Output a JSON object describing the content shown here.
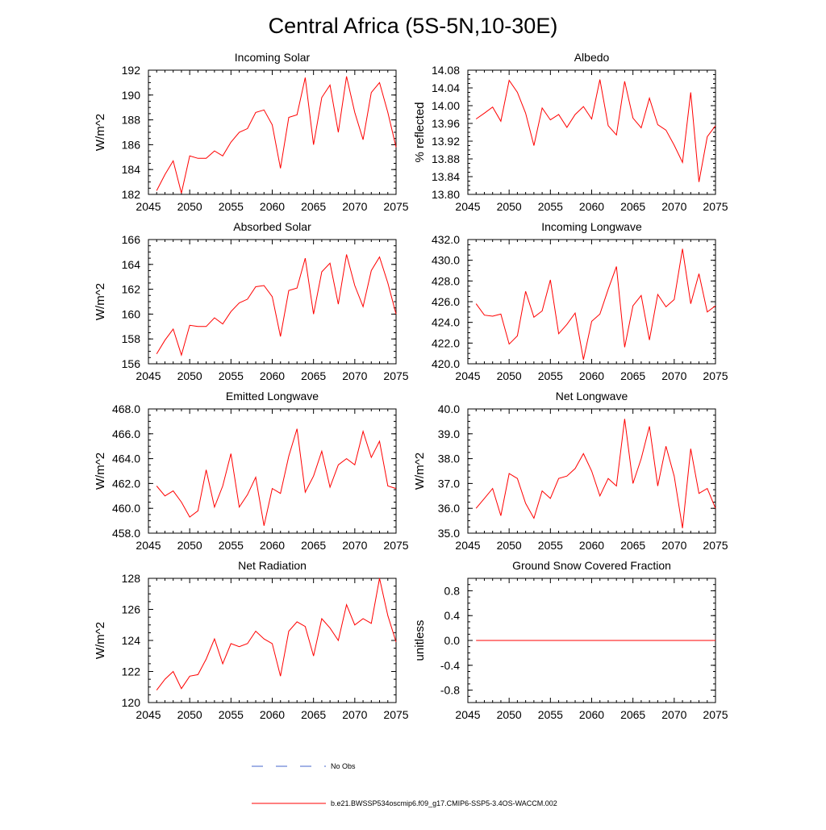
{
  "figure_title": "Central Africa (5S-5N,10-30E)",
  "legend": {
    "entries": [
      {
        "label": "No Obs",
        "color": "#4466cc",
        "style": "dashed"
      },
      {
        "label": "b.e21.BWSSP534oscmip6.f09_g17.CMIP6-SSP5-3.4OS-WACCM.002",
        "color": "#ff0000",
        "style": "solid"
      }
    ]
  },
  "chart_data": [
    {
      "type": "line",
      "title": "Incoming Solar",
      "ylabel": "W/m^2",
      "xlim": [
        2045,
        2075
      ],
      "xticks": [
        "2045",
        "2050",
        "2055",
        "2060",
        "2065",
        "2070",
        "2075"
      ],
      "ylim": [
        182,
        192
      ],
      "yticks": [
        "182",
        "184",
        "186",
        "188",
        "190",
        "192"
      ],
      "series": [
        {
          "name": "b.e21.BWSSP534oscmip6.f09_g17.CMIP6-SSP5-3.4OS-WACCM.002",
          "color": "#ff0000",
          "x": [
            2046,
            2047,
            2048,
            2049,
            2050,
            2051,
            2052,
            2053,
            2054,
            2055,
            2056,
            2057,
            2058,
            2059,
            2060,
            2061,
            2062,
            2063,
            2064,
            2065,
            2066,
            2067,
            2068,
            2069,
            2070,
            2071,
            2072,
            2073,
            2074,
            2075
          ],
          "values": [
            182.3,
            183.6,
            184.7,
            182.1,
            185.1,
            184.9,
            184.9,
            185.5,
            185.1,
            186.2,
            187.0,
            187.3,
            188.6,
            188.8,
            187.6,
            184.1,
            188.2,
            188.4,
            191.4,
            186.0,
            189.8,
            190.8,
            187.0,
            191.5,
            188.6,
            186.4,
            190.2,
            191.0,
            188.6,
            185.8
          ]
        }
      ]
    },
    {
      "type": "line",
      "title": "Albedo",
      "ylabel": "% reflected",
      "xlim": [
        2045,
        2075
      ],
      "xticks": [
        "2045",
        "2050",
        "2055",
        "2060",
        "2065",
        "2070",
        "2075"
      ],
      "ylim": [
        13.8,
        14.08
      ],
      "yticks": [
        "13.80",
        "13.84",
        "13.88",
        "13.92",
        "13.96",
        "14.00",
        "14.04",
        "14.08"
      ],
      "series": [
        {
          "name": "b.e21.BWSSP534oscmip6.f09_g17.CMIP6-SSP5-3.4OS-WACCM.002",
          "color": "#ff0000",
          "x": [
            2046,
            2047,
            2048,
            2049,
            2050,
            2051,
            2052,
            2053,
            2054,
            2055,
            2056,
            2057,
            2058,
            2059,
            2060,
            2061,
            2062,
            2063,
            2064,
            2065,
            2066,
            2067,
            2068,
            2069,
            2070,
            2071,
            2072,
            2073,
            2074,
            2075
          ],
          "values": [
            13.97,
            13.983,
            13.997,
            13.965,
            14.057,
            14.03,
            13.983,
            13.91,
            13.995,
            13.968,
            13.98,
            13.951,
            13.98,
            13.998,
            13.97,
            14.059,
            13.955,
            13.934,
            14.055,
            13.972,
            13.95,
            14.017,
            13.957,
            13.945,
            13.911,
            13.872,
            14.03,
            13.828,
            13.93,
            13.955
          ]
        }
      ]
    },
    {
      "type": "line",
      "title": "Absorbed Solar",
      "ylabel": "W/m^2",
      "xlim": [
        2045,
        2075
      ],
      "xticks": [
        "2045",
        "2050",
        "2055",
        "2060",
        "2065",
        "2070",
        "2075"
      ],
      "ylim": [
        156,
        166
      ],
      "yticks": [
        "156",
        "158",
        "160",
        "162",
        "164",
        "166"
      ],
      "series": [
        {
          "name": "b.e21.BWSSP534oscmip6.f09_g17.CMIP6-SSP5-3.4OS-WACCM.002",
          "color": "#ff0000",
          "x": [
            2046,
            2047,
            2048,
            2049,
            2050,
            2051,
            2052,
            2053,
            2054,
            2055,
            2056,
            2057,
            2058,
            2059,
            2060,
            2061,
            2062,
            2063,
            2064,
            2065,
            2066,
            2067,
            2068,
            2069,
            2070,
            2071,
            2072,
            2073,
            2074,
            2075
          ],
          "values": [
            156.8,
            157.9,
            158.8,
            156.7,
            159.1,
            159.0,
            159.0,
            159.7,
            159.2,
            160.2,
            160.9,
            161.2,
            162.2,
            162.3,
            161.4,
            158.2,
            161.9,
            162.1,
            164.5,
            160.0,
            163.4,
            164.1,
            160.8,
            164.8,
            162.3,
            160.6,
            163.5,
            164.6,
            162.5,
            160.0
          ]
        }
      ]
    },
    {
      "type": "line",
      "title": "Incoming Longwave",
      "ylabel": "",
      "xlim": [
        2045,
        2075
      ],
      "xticks": [
        "2045",
        "2050",
        "2055",
        "2060",
        "2065",
        "2070",
        "2075"
      ],
      "ylim": [
        420,
        432
      ],
      "yticks": [
        "420.0",
        "422.0",
        "424.0",
        "426.0",
        "428.0",
        "430.0",
        "432.0"
      ],
      "series": [
        {
          "name": "b.e21.BWSSP534oscmip6.f09_g17.CMIP6-SSP5-3.4OS-WACCM.002",
          "color": "#ff0000",
          "x": [
            2046,
            2047,
            2048,
            2049,
            2050,
            2051,
            2052,
            2053,
            2054,
            2055,
            2056,
            2057,
            2058,
            2059,
            2060,
            2061,
            2062,
            2063,
            2064,
            2065,
            2066,
            2067,
            2068,
            2069,
            2070,
            2071,
            2072,
            2073,
            2074,
            2075
          ],
          "values": [
            425.8,
            424.7,
            424.6,
            424.8,
            421.9,
            422.7,
            427.0,
            424.5,
            425.1,
            428.1,
            422.9,
            423.8,
            424.9,
            420.4,
            424.1,
            424.8,
            427.2,
            429.4,
            421.6,
            425.6,
            426.6,
            422.3,
            426.7,
            425.5,
            426.2,
            431.1,
            425.8,
            428.7,
            425.0,
            425.6
          ]
        }
      ]
    },
    {
      "type": "line",
      "title": "Emitted Longwave",
      "ylabel": "W/m^2",
      "xlim": [
        2045,
        2075
      ],
      "xticks": [
        "2045",
        "2050",
        "2055",
        "2060",
        "2065",
        "2070",
        "2075"
      ],
      "ylim": [
        458,
        468
      ],
      "yticks": [
        "458.0",
        "460.0",
        "462.0",
        "464.0",
        "466.0",
        "468.0"
      ],
      "series": [
        {
          "name": "b.e21.BWSSP534oscmip6.f09_g17.CMIP6-SSP5-3.4OS-WACCM.002",
          "color": "#ff0000",
          "x": [
            2046,
            2047,
            2048,
            2049,
            2050,
            2051,
            2052,
            2053,
            2054,
            2055,
            2056,
            2057,
            2058,
            2059,
            2060,
            2061,
            2062,
            2063,
            2064,
            2065,
            2066,
            2067,
            2068,
            2069,
            2070,
            2071,
            2072,
            2073,
            2074,
            2075
          ],
          "values": [
            461.8,
            461.0,
            461.4,
            460.5,
            459.3,
            459.8,
            463.1,
            460.1,
            461.8,
            464.4,
            460.1,
            461.1,
            462.5,
            458.6,
            461.6,
            461.2,
            464.2,
            466.4,
            461.3,
            462.6,
            464.6,
            461.7,
            463.5,
            464.0,
            463.5,
            466.2,
            464.1,
            465.4,
            461.8,
            461.6
          ]
        }
      ]
    },
    {
      "type": "line",
      "title": "Net Longwave",
      "ylabel": "W/m^2",
      "xlim": [
        2045,
        2075
      ],
      "xticks": [
        "2045",
        "2050",
        "2055",
        "2060",
        "2065",
        "2070",
        "2075"
      ],
      "ylim": [
        35,
        40
      ],
      "yticks": [
        "35.0",
        "36.0",
        "37.0",
        "38.0",
        "39.0",
        "40.0"
      ],
      "series": [
        {
          "name": "b.e21.BWSSP534oscmip6.f09_g17.CMIP6-SSP5-3.4OS-WACCM.002",
          "color": "#ff0000",
          "x": [
            2046,
            2047,
            2048,
            2049,
            2050,
            2051,
            2052,
            2053,
            2054,
            2055,
            2056,
            2057,
            2058,
            2059,
            2060,
            2061,
            2062,
            2063,
            2064,
            2065,
            2066,
            2067,
            2068,
            2069,
            2070,
            2071,
            2072,
            2073,
            2074,
            2075
          ],
          "values": [
            36.0,
            36.4,
            36.8,
            35.7,
            37.4,
            37.2,
            36.2,
            35.6,
            36.7,
            36.4,
            37.2,
            37.3,
            37.6,
            38.2,
            37.5,
            36.5,
            37.2,
            36.9,
            39.6,
            37.0,
            38.0,
            39.3,
            36.9,
            38.5,
            37.3,
            35.2,
            38.4,
            36.6,
            36.8,
            36.0
          ]
        }
      ]
    },
    {
      "type": "line",
      "title": "Net Radiation",
      "ylabel": "W/m^2",
      "xlim": [
        2045,
        2075
      ],
      "xticks": [
        "2045",
        "2050",
        "2055",
        "2060",
        "2065",
        "2070",
        "2075"
      ],
      "ylim": [
        120,
        128
      ],
      "yticks": [
        "120",
        "122",
        "124",
        "126",
        "128"
      ],
      "series": [
        {
          "name": "b.e21.BWSSP534oscmip6.f09_g17.CMIP6-SSP5-3.4OS-WACCM.002",
          "color": "#ff0000",
          "x": [
            2046,
            2047,
            2048,
            2049,
            2050,
            2051,
            2052,
            2053,
            2054,
            2055,
            2056,
            2057,
            2058,
            2059,
            2060,
            2061,
            2062,
            2063,
            2064,
            2065,
            2066,
            2067,
            2068,
            2069,
            2070,
            2071,
            2072,
            2073,
            2074,
            2075
          ],
          "values": [
            120.8,
            121.5,
            122.0,
            120.9,
            121.7,
            121.8,
            122.8,
            124.1,
            122.5,
            123.8,
            123.6,
            123.8,
            124.6,
            124.1,
            123.8,
            121.7,
            124.6,
            125.2,
            124.9,
            123.0,
            125.4,
            124.8,
            124.0,
            126.3,
            125.0,
            125.4,
            125.1,
            128.0,
            125.6,
            123.9
          ]
        }
      ]
    },
    {
      "type": "line",
      "title": "Ground Snow Covered Fraction",
      "ylabel": "unitless",
      "xlim": [
        2045,
        2075
      ],
      "xticks": [
        "2045",
        "2050",
        "2055",
        "2060",
        "2065",
        "2070",
        "2075"
      ],
      "ylim": [
        -1.0,
        1.0
      ],
      "yticks": [
        "-0.8",
        "-0.4",
        "0.0",
        "0.4",
        "0.8"
      ],
      "series": [
        {
          "name": "b.e21.BWSSP534oscmip6.f09_g17.CMIP6-SSP5-3.4OS-WACCM.002",
          "color": "#ff0000",
          "x": [
            2046,
            2047,
            2048,
            2049,
            2050,
            2051,
            2052,
            2053,
            2054,
            2055,
            2056,
            2057,
            2058,
            2059,
            2060,
            2061,
            2062,
            2063,
            2064,
            2065,
            2066,
            2067,
            2068,
            2069,
            2070,
            2071,
            2072,
            2073,
            2074,
            2075
          ],
          "values": [
            0,
            0,
            0,
            0,
            0,
            0,
            0,
            0,
            0,
            0,
            0,
            0,
            0,
            0,
            0,
            0,
            0,
            0,
            0,
            0,
            0,
            0,
            0,
            0,
            0,
            0,
            0,
            0,
            0,
            0
          ]
        }
      ]
    }
  ]
}
